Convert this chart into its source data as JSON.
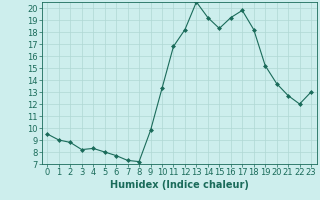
{
  "x": [
    0,
    1,
    2,
    3,
    4,
    5,
    6,
    7,
    8,
    9,
    10,
    11,
    12,
    13,
    14,
    15,
    16,
    17,
    18,
    19,
    20,
    21,
    22,
    23
  ],
  "y": [
    9.5,
    9.0,
    8.8,
    8.2,
    8.3,
    8.0,
    7.7,
    7.3,
    7.2,
    9.8,
    13.3,
    16.8,
    18.2,
    20.5,
    19.2,
    18.3,
    19.2,
    19.8,
    18.2,
    15.2,
    13.7,
    12.7,
    12.0,
    13.0
  ],
  "line_color": "#1a6b5a",
  "marker": "D",
  "marker_size": 2.0,
  "bg_color": "#cdeeed",
  "grid_color": "#b0d8d4",
  "tick_color": "#1a6b5a",
  "xlabel": "Humidex (Indice chaleur)",
  "xlim": [
    -0.5,
    23.5
  ],
  "ylim": [
    7,
    20.5
  ],
  "yticks": [
    7,
    8,
    9,
    10,
    11,
    12,
    13,
    14,
    15,
    16,
    17,
    18,
    19,
    20
  ],
  "xticks": [
    0,
    1,
    2,
    3,
    4,
    5,
    6,
    7,
    8,
    9,
    10,
    11,
    12,
    13,
    14,
    15,
    16,
    17,
    18,
    19,
    20,
    21,
    22,
    23
  ],
  "font_size_label": 7,
  "font_size_tick": 6
}
